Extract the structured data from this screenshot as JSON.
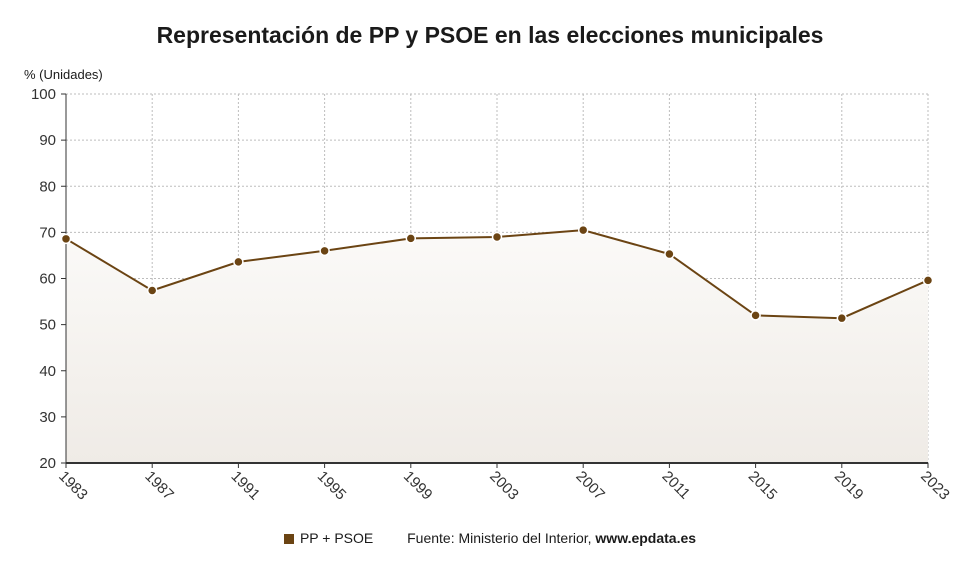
{
  "chart_data": {
    "type": "line",
    "title": "Representación de PP y PSOE en las elecciones municipales",
    "ylabel": "% (Unidades)",
    "xlabel": "",
    "x": [
      "1983",
      "1987",
      "1991",
      "1995",
      "1999",
      "2003",
      "2007",
      "2011",
      "2015",
      "2019",
      "2023"
    ],
    "series": [
      {
        "name": "PP + PSOE",
        "values": [
          68.6,
          57.4,
          63.6,
          66.0,
          68.7,
          69.0,
          70.5,
          65.3,
          52.0,
          51.4,
          59.6
        ]
      }
    ],
    "ylim": [
      20,
      100
    ],
    "yticks": [
      20,
      30,
      40,
      50,
      60,
      70,
      80,
      90,
      100
    ],
    "grid": true,
    "legend": "bottom",
    "colors": {
      "line": "#6b4413",
      "area_top": "#fbfaf8",
      "area_bottom": "#efebe6",
      "grid": "#bdbdbd"
    }
  },
  "footer": {
    "source_label": "Fuente: Ministerio del Interior, ",
    "source_site": "www.epdata.es"
  }
}
